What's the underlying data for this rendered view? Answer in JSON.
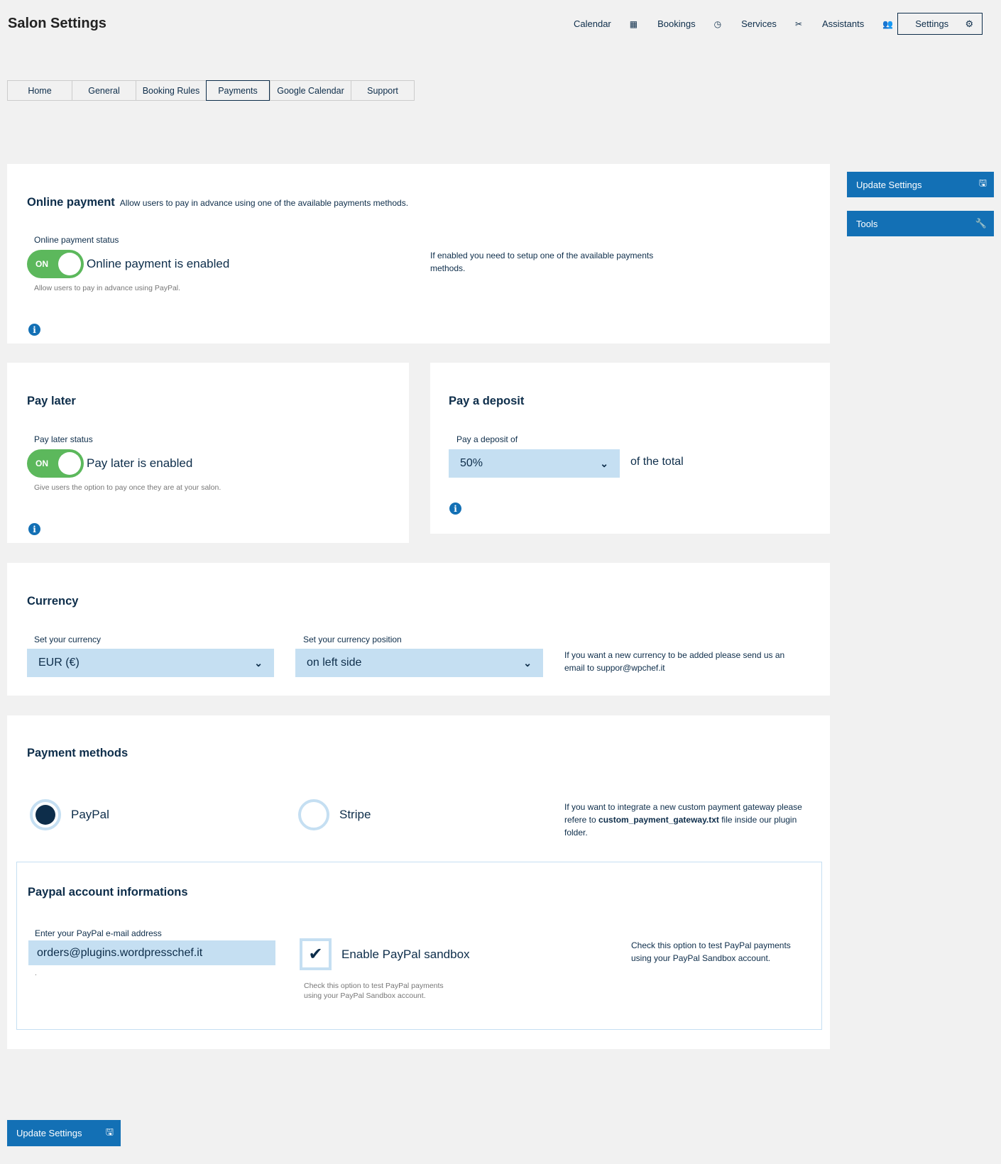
{
  "header": {
    "title": "Salon Settings",
    "nav": [
      {
        "label": "Calendar",
        "icon": "calendar-icon"
      },
      {
        "label": "Bookings",
        "icon": "clock-icon"
      },
      {
        "label": "Services",
        "icon": "scissors-icon"
      },
      {
        "label": "Assistants",
        "icon": "users-icon"
      }
    ],
    "settings": "Settings"
  },
  "tabs": [
    "Home",
    "General",
    "Booking Rules",
    "Payments",
    "Google Calendar",
    "Support"
  ],
  "active_tab": "Payments",
  "online": {
    "title": "Online payment",
    "subtitle": "Allow users to pay in advance using one of the available payments methods.",
    "status_label": "Online payment status",
    "toggle": "ON",
    "state": "Online payment is enabled",
    "help": "Allow users to pay in advance using PayPal.",
    "note": "If enabled you need to setup one of the available payments methods."
  },
  "pay_later": {
    "title": "Pay later",
    "status_label": "Pay later status",
    "toggle": "ON",
    "state": "Pay later is enabled",
    "help": "Give users the option to pay once they are at your salon."
  },
  "deposit": {
    "title": "Pay a deposit",
    "label": "Pay a deposit of",
    "value": "50%",
    "suffix": "of the total"
  },
  "currency": {
    "title": "Currency",
    "currency_label": "Set your currency",
    "currency_value": "EUR (€)",
    "position_label": "Set your currency position",
    "position_value": "on left side",
    "note": "If you want a new currency to be added please send us an email to suppor@wpchef.it"
  },
  "methods": {
    "title": "Payment methods",
    "options": [
      "PayPal",
      "Stripe"
    ],
    "selected": "PayPal",
    "note_pre": "If you want to integrate a new custom payment gateway please refere to ",
    "note_file": "custom_payment_gateway.txt",
    "note_post": " file inside our plugin folder."
  },
  "paypal": {
    "title": "Paypal account informations",
    "email_label": "Enter your PayPal e-mail address",
    "email_value": "orders@plugins.wordpresschef.it",
    "email_help": ".",
    "sandbox_label": "Enable PayPal sandbox",
    "sandbox_checked": true,
    "sandbox_help": "Check this option to test PayPal payments using your PayPal Sandbox account.",
    "note": "Check this option to test PayPal payments using your PayPal Sandbox account."
  },
  "sidebar": {
    "update": "Update Settings",
    "tools": "Tools"
  },
  "footer": {
    "update": "Update Settings"
  },
  "colors": {
    "primary": "#1370b5",
    "dark": "#0d2d4a",
    "toggle_on": "#5cb85c",
    "field": "#c5dff2"
  }
}
